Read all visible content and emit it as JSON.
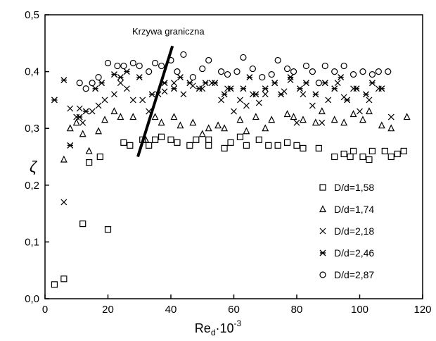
{
  "chart_data": {
    "type": "scatter",
    "xlabel": {
      "base": "Re",
      "sub": "d",
      "mid": "·10",
      "sup": "-3"
    },
    "ylabel": "ζ",
    "xlim": [
      0,
      120
    ],
    "ylim": [
      0.0,
      0.5
    ],
    "xticks": [
      "0",
      "20",
      "40",
      "60",
      "80",
      "100",
      "120"
    ],
    "yticks": [
      "0,0",
      "0,1",
      "0,2",
      "0,3",
      "0,4",
      "0,5"
    ],
    "grid": false,
    "legend_position": "lower-right",
    "annotation": {
      "text": "Krzywa graniczna",
      "line": [
        [
          29.5,
          0.25
        ],
        [
          40.5,
          0.445
        ]
      ]
    },
    "series": [
      {
        "name": "D/d=1,58",
        "marker": "square",
        "points": [
          [
            3,
            0.025
          ],
          [
            6,
            0.035
          ],
          [
            12,
            0.132
          ],
          [
            14,
            0.24
          ],
          [
            17.5,
            0.25
          ],
          [
            20,
            0.122
          ],
          [
            25,
            0.275
          ],
          [
            27,
            0.27
          ],
          [
            31,
            0.28
          ],
          [
            33,
            0.27
          ],
          [
            35,
            0.28
          ],
          [
            37,
            0.285
          ],
          [
            40,
            0.28
          ],
          [
            42,
            0.275
          ],
          [
            46,
            0.27
          ],
          [
            48,
            0.28
          ],
          [
            52,
            0.27
          ],
          [
            52,
            0.28
          ],
          [
            57,
            0.265
          ],
          [
            59,
            0.275
          ],
          [
            62,
            0.285
          ],
          [
            64,
            0.27
          ],
          [
            68,
            0.28
          ],
          [
            71,
            0.27
          ],
          [
            74,
            0.27
          ],
          [
            77,
            0.275
          ],
          [
            80,
            0.27
          ],
          [
            82,
            0.265
          ],
          [
            87,
            0.265
          ],
          [
            92,
            0.25
          ],
          [
            95,
            0.255
          ],
          [
            97,
            0.25
          ],
          [
            98,
            0.26
          ],
          [
            101,
            0.25
          ],
          [
            103,
            0.245
          ],
          [
            104,
            0.26
          ],
          [
            108,
            0.26
          ],
          [
            110,
            0.25
          ],
          [
            112,
            0.255
          ],
          [
            114,
            0.26
          ]
        ]
      },
      {
        "name": "D/d=1,74",
        "marker": "triangle",
        "points": [
          [
            6,
            0.245
          ],
          [
            8,
            0.3
          ],
          [
            10,
            0.31
          ],
          [
            12,
            0.29
          ],
          [
            14,
            0.26
          ],
          [
            17,
            0.295
          ],
          [
            19,
            0.315
          ],
          [
            22,
            0.33
          ],
          [
            24,
            0.32
          ],
          [
            28,
            0.32
          ],
          [
            32,
            0.28
          ],
          [
            35,
            0.32
          ],
          [
            37,
            0.31
          ],
          [
            41,
            0.32
          ],
          [
            43,
            0.305
          ],
          [
            47,
            0.31
          ],
          [
            50,
            0.29
          ],
          [
            52,
            0.3
          ],
          [
            55,
            0.305
          ],
          [
            57,
            0.3
          ],
          [
            62,
            0.315
          ],
          [
            64,
            0.295
          ],
          [
            67,
            0.32
          ],
          [
            70,
            0.3
          ],
          [
            72,
            0.315
          ],
          [
            77,
            0.325
          ],
          [
            79,
            0.32
          ],
          [
            82,
            0.315
          ],
          [
            86,
            0.31
          ],
          [
            88,
            0.33
          ],
          [
            92,
            0.315
          ],
          [
            95,
            0.31
          ],
          [
            98,
            0.325
          ],
          [
            101,
            0.315
          ],
          [
            103,
            0.33
          ],
          [
            107,
            0.305
          ],
          [
            110,
            0.3
          ],
          [
            115,
            0.32
          ]
        ]
      },
      {
        "name": "D/d=2,18",
        "marker": "x",
        "points": [
          [
            6,
            0.17
          ],
          [
            8,
            0.335
          ],
          [
            10,
            0.32
          ],
          [
            11,
            0.335
          ],
          [
            12,
            0.31
          ],
          [
            15,
            0.33
          ],
          [
            17,
            0.34
          ],
          [
            19,
            0.35
          ],
          [
            22,
            0.36
          ],
          [
            24,
            0.38
          ],
          [
            26,
            0.37
          ],
          [
            28,
            0.35
          ],
          [
            31,
            0.35
          ],
          [
            33,
            0.33
          ],
          [
            36,
            0.36
          ],
          [
            38,
            0.365
          ],
          [
            41,
            0.38
          ],
          [
            44,
            0.36
          ],
          [
            47,
            0.375
          ],
          [
            50,
            0.37
          ],
          [
            53,
            0.38
          ],
          [
            56,
            0.35
          ],
          [
            58,
            0.37
          ],
          [
            60,
            0.33
          ],
          [
            62,
            0.35
          ],
          [
            64,
            0.34
          ],
          [
            66,
            0.36
          ],
          [
            68,
            0.345
          ],
          [
            70,
            0.36
          ],
          [
            73,
            0.38
          ],
          [
            76,
            0.365
          ],
          [
            78,
            0.385
          ],
          [
            80,
            0.31
          ],
          [
            82,
            0.36
          ],
          [
            85,
            0.34
          ],
          [
            88,
            0.31
          ],
          [
            90,
            0.35
          ],
          [
            93,
            0.38
          ],
          [
            95,
            0.355
          ],
          [
            98,
            0.37
          ],
          [
            100,
            0.33
          ],
          [
            103,
            0.35
          ],
          [
            106,
            0.37
          ],
          [
            110,
            0.32
          ]
        ]
      },
      {
        "name": "D/d=2,46",
        "marker": "star",
        "points": [
          [
            3,
            0.35
          ],
          [
            6,
            0.385
          ],
          [
            8,
            0.27
          ],
          [
            11,
            0.32
          ],
          [
            13,
            0.33
          ],
          [
            16,
            0.37
          ],
          [
            18,
            0.38
          ],
          [
            22,
            0.395
          ],
          [
            24,
            0.39
          ],
          [
            26,
            0.4
          ],
          [
            30,
            0.39
          ],
          [
            34,
            0.36
          ],
          [
            38,
            0.38
          ],
          [
            41,
            0.37
          ],
          [
            43,
            0.39
          ],
          [
            46,
            0.38
          ],
          [
            49,
            0.37
          ],
          [
            51,
            0.38
          ],
          [
            54,
            0.38
          ],
          [
            57,
            0.36
          ],
          [
            59,
            0.37
          ],
          [
            63,
            0.37
          ],
          [
            65,
            0.39
          ],
          [
            67,
            0.36
          ],
          [
            70,
            0.37
          ],
          [
            73,
            0.38
          ],
          [
            75,
            0.36
          ],
          [
            78,
            0.39
          ],
          [
            81,
            0.37
          ],
          [
            83,
            0.38
          ],
          [
            86,
            0.36
          ],
          [
            89,
            0.38
          ],
          [
            92,
            0.37
          ],
          [
            94,
            0.39
          ],
          [
            96,
            0.35
          ],
          [
            99,
            0.37
          ],
          [
            102,
            0.36
          ],
          [
            104,
            0.38
          ],
          [
            107,
            0.37
          ]
        ]
      },
      {
        "name": "D/d=2,87",
        "marker": "circle",
        "points": [
          [
            11,
            0.38
          ],
          [
            13,
            0.37
          ],
          [
            15,
            0.38
          ],
          [
            17,
            0.39
          ],
          [
            20,
            0.415
          ],
          [
            23,
            0.41
          ],
          [
            25,
            0.41
          ],
          [
            28,
            0.415
          ],
          [
            30,
            0.41
          ],
          [
            33,
            0.4
          ],
          [
            35,
            0.415
          ],
          [
            37,
            0.41
          ],
          [
            40,
            0.42
          ],
          [
            42,
            0.4
          ],
          [
            44,
            0.43
          ],
          [
            47,
            0.39
          ],
          [
            50,
            0.405
          ],
          [
            52,
            0.42
          ],
          [
            56,
            0.4
          ],
          [
            58,
            0.395
          ],
          [
            61,
            0.4
          ],
          [
            63,
            0.425
          ],
          [
            66,
            0.405
          ],
          [
            69,
            0.39
          ],
          [
            72,
            0.395
          ],
          [
            74,
            0.42
          ],
          [
            77,
            0.405
          ],
          [
            79,
            0.4
          ],
          [
            83,
            0.41
          ],
          [
            85,
            0.4
          ],
          [
            87,
            0.38
          ],
          [
            89,
            0.41
          ],
          [
            92,
            0.4
          ],
          [
            95,
            0.41
          ],
          [
            98,
            0.395
          ],
          [
            101,
            0.4
          ],
          [
            104,
            0.395
          ],
          [
            106,
            0.4
          ],
          [
            109,
            0.4
          ]
        ]
      }
    ]
  }
}
